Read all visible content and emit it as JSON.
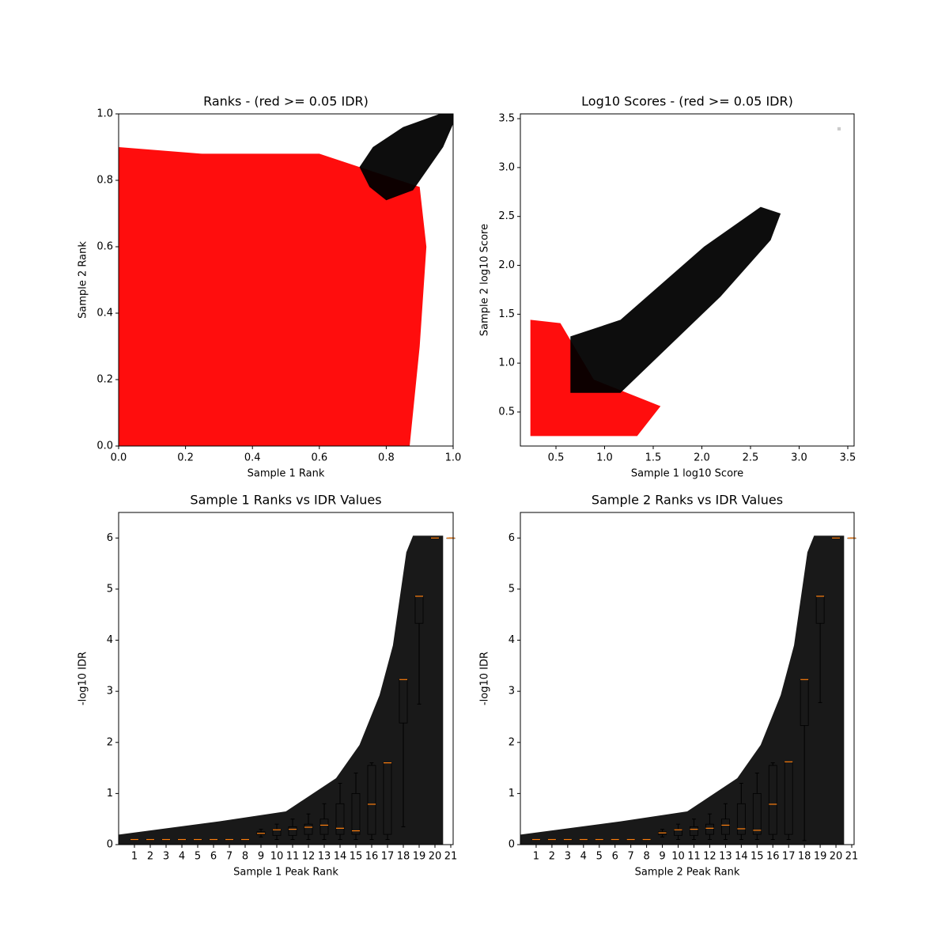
{
  "chart_data": [
    {
      "type": "scatter",
      "title": "Ranks - (red >= 0.05 IDR)",
      "x_label": "Sample 1 Rank",
      "y_label": "Sample 2 Rank",
      "xlim": [
        0,
        1
      ],
      "ylim": [
        0,
        1
      ],
      "xticks": [
        {
          "value": 0,
          "label": "0.0"
        },
        {
          "value": 0.2,
          "label": "0.2"
        },
        {
          "value": 0.4,
          "label": "0.4"
        },
        {
          "value": 0.6,
          "label": "0.6"
        },
        {
          "value": 0.8,
          "label": "0.8"
        },
        {
          "value": 1,
          "label": "1.0"
        }
      ],
      "yticks": [
        {
          "value": 0,
          "label": "0.0"
        },
        {
          "value": 0.2,
          "label": "0.2"
        },
        {
          "value": 0.4,
          "label": "0.4"
        },
        {
          "value": 0.6,
          "label": "0.6"
        },
        {
          "value": 0.8,
          "label": "0.8"
        },
        {
          "value": 1,
          "label": "1.0"
        }
      ],
      "colors": [
        "#ff0000",
        "#000000"
      ]
    },
    {
      "type": "scatter",
      "title": "Log10 Scores - (red >= 0.05 IDR)",
      "x_label": "Sample 1 log10 Score",
      "y_label": "Sample 2 log10 Score",
      "xlim": [
        0.134,
        3.565
      ],
      "ylim": [
        0.152,
        3.549
      ],
      "xticks": [
        0.5,
        {
          "value": 1,
          "label": "1.0"
        },
        1.5,
        {
          "value": 2,
          "label": "2.0"
        },
        2.5,
        {
          "value": 3,
          "label": "3.0"
        },
        3.5
      ],
      "yticks": [
        0.5,
        {
          "value": 1,
          "label": "1.0"
        },
        1.5,
        {
          "value": 2,
          "label": "2.0"
        },
        2.5,
        {
          "value": 3,
          "label": "3.0"
        },
        3.5
      ],
      "colors": [
        "#ff0000",
        "#000000"
      ]
    },
    {
      "type": "box",
      "title": "Sample 1 Ranks vs IDR Values",
      "x_label": "Sample 1 Peak Rank",
      "y_label": "-log10 IDR",
      "xlim": [
        0,
        21.15
      ],
      "ylim": [
        0,
        6.5
      ],
      "categories": [
        1,
        2,
        3,
        4,
        5,
        6,
        7,
        8,
        9,
        10,
        11,
        12,
        13,
        14,
        15,
        16,
        17,
        18,
        19,
        20,
        21
      ],
      "yticks": [
        0,
        1,
        2,
        3,
        4,
        5,
        6
      ],
      "medians": [
        0.1,
        0.1,
        0.1,
        0.1,
        0.1,
        0.1,
        0.1,
        0.1,
        0.22,
        0.29,
        0.3,
        0.34,
        0.38,
        0.32,
        0.27,
        0.79,
        1.6,
        3.23,
        4.86,
        6,
        6
      ],
      "q1": [
        0.1,
        0.1,
        0.1,
        0.1,
        0.1,
        0.1,
        0.1,
        0.1,
        0.2,
        0.18,
        0.18,
        0.2,
        0.2,
        0.2,
        0.2,
        0.2,
        0.2,
        2.38,
        4.33,
        6,
        6
      ],
      "q3": [
        0.1,
        0.1,
        0.1,
        0.1,
        0.1,
        0.1,
        0.1,
        0.1,
        0.25,
        0.3,
        0.35,
        0.4,
        0.5,
        0.8,
        1,
        1.55,
        1.6,
        3.23,
        4.86,
        6,
        6
      ],
      "whislo": [
        0.1,
        0.1,
        0.1,
        0.1,
        0.1,
        0.1,
        0.1,
        0.1,
        0.15,
        0.1,
        0.1,
        0.1,
        0.1,
        0.1,
        0.1,
        0.1,
        0.1,
        0.35,
        2.75,
        6,
        6
      ],
      "whishi": [
        0.1,
        0.1,
        0.1,
        0.1,
        0.1,
        0.1,
        0.1,
        0.1,
        0.3,
        0.4,
        0.5,
        0.6,
        0.8,
        1.2,
        1.4,
        1.6,
        1.6,
        3.23,
        4.86,
        6,
        6
      ],
      "colors": [
        "#000000",
        "#ff7f0e"
      ]
    },
    {
      "type": "box",
      "title": "Sample 2 Ranks vs IDR Values",
      "x_label": "Sample 2 Peak Rank",
      "y_label": "-log10 IDR",
      "xlim": [
        0,
        21.15
      ],
      "ylim": [
        0,
        6.5
      ],
      "categories": [
        1,
        2,
        3,
        4,
        5,
        6,
        7,
        8,
        9,
        10,
        11,
        12,
        13,
        14,
        15,
        16,
        17,
        18,
        19,
        20,
        21
      ],
      "yticks": [
        0,
        1,
        2,
        3,
        4,
        5,
        6
      ],
      "medians": [
        0.1,
        0.1,
        0.1,
        0.1,
        0.1,
        0.1,
        0.1,
        0.1,
        0.23,
        0.29,
        0.3,
        0.32,
        0.38,
        0.31,
        0.28,
        0.79,
        1.62,
        3.23,
        4.86,
        6,
        6
      ],
      "q1": [
        0.1,
        0.1,
        0.1,
        0.1,
        0.1,
        0.1,
        0.1,
        0.1,
        0.2,
        0.18,
        0.18,
        0.2,
        0.2,
        0.2,
        0.2,
        0.2,
        0.2,
        2.33,
        4.33,
        6,
        6
      ],
      "q3": [
        0.1,
        0.1,
        0.1,
        0.1,
        0.1,
        0.1,
        0.1,
        0.1,
        0.25,
        0.3,
        0.35,
        0.4,
        0.5,
        0.8,
        1,
        1.55,
        1.62,
        3.23,
        4.86,
        6,
        6
      ],
      "whislo": [
        0.1,
        0.1,
        0.1,
        0.1,
        0.1,
        0.1,
        0.1,
        0.1,
        0.15,
        0.1,
        0.1,
        0.1,
        0.1,
        0.1,
        0.1,
        0.1,
        0.1,
        0.08,
        2.78,
        6,
        6
      ],
      "whishi": [
        0.1,
        0.1,
        0.1,
        0.1,
        0.1,
        0.1,
        0.1,
        0.1,
        0.3,
        0.4,
        0.5,
        0.6,
        0.8,
        1.2,
        1.4,
        1.6,
        1.62,
        3.23,
        4.86,
        6,
        6
      ],
      "colors": [
        "#000000",
        "#ff7f0e"
      ]
    }
  ]
}
